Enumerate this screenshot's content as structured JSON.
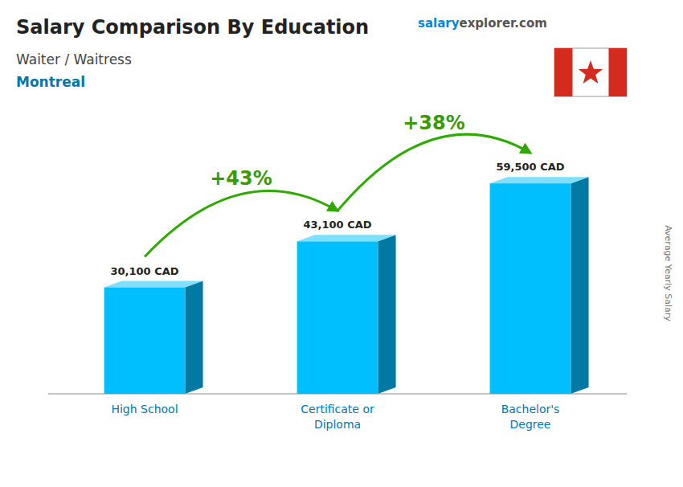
{
  "chart_data": {
    "type": "bar",
    "title": "Salary Comparison By Education",
    "subtitle": [
      "Waiter / Waitress",
      "Montreal"
    ],
    "ylabel": "Average Yearly Salary",
    "categories": [
      "High School",
      "Certificate or\nDiploma",
      "Bachelor's\nDegree"
    ],
    "values": [
      30100,
      43100,
      59500
    ],
    "value_labels": [
      "30,100 CAD",
      "43,100 CAD",
      "59,500 CAD"
    ],
    "data_labels": true,
    "annotations": [
      "+43%",
      "+38%",
      "salary",
      "explorer.com"
    ],
    "color": "#00bfff",
    "ylim": [
      0,
      75000
    ],
    "tick_labels": false,
    "grid": false
  }
}
